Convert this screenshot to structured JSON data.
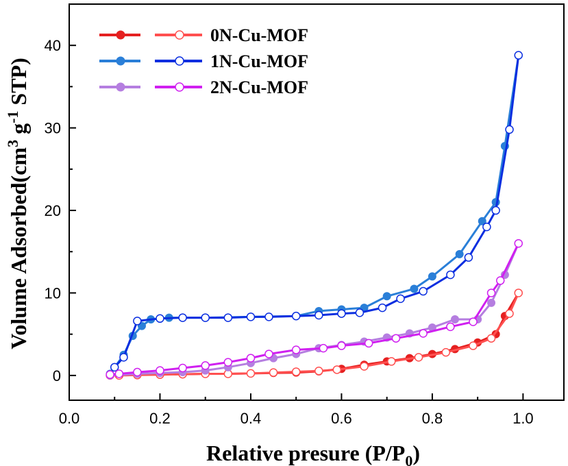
{
  "chart_data": {
    "type": "line",
    "xlabel": "Relative presure (P/P",
    "xlabel_sub": "0",
    "xlabel_end": ")",
    "ylabel": "Volume Adsorbed(cm",
    "ylabel_sup1": "3",
    "ylabel_mid": " g",
    "ylabel_sup2": "-1",
    "ylabel_end": " STP)",
    "xlim": [
      0.0,
      1.09
    ],
    "ylim": [
      -3.0,
      45.0
    ],
    "xticks": [
      0.0,
      0.2,
      0.4,
      0.6,
      0.8,
      1.0
    ],
    "xtick_labels": [
      "0.0",
      "0.2",
      "0.4",
      "0.6",
      "0.8",
      "1.0"
    ],
    "yticks": [
      0,
      10,
      20,
      30,
      40
    ],
    "ytick_labels": [
      "0",
      "10",
      "20",
      "30",
      "40"
    ],
    "legend_position": "top-left",
    "series": [
      {
        "name": "0N-Cu-MOF",
        "adsorption_color": "#e52020",
        "desorption_color": "#ff5050",
        "adsorption": {
          "x": [
            0.09,
            0.15,
            0.2,
            0.25,
            0.3,
            0.35,
            0.4,
            0.45,
            0.5,
            0.55,
            0.6,
            0.65,
            0.7,
            0.75,
            0.8,
            0.85,
            0.9,
            0.94,
            0.96,
            0.99
          ],
          "y": [
            0.0,
            0.1,
            0.15,
            0.15,
            0.2,
            0.2,
            0.25,
            0.3,
            0.35,
            0.5,
            0.8,
            1.3,
            1.7,
            2.1,
            2.6,
            3.2,
            4.0,
            5.0,
            7.2,
            10.0
          ]
        },
        "desorption": {
          "x": [
            0.99,
            0.97,
            0.93,
            0.89,
            0.83,
            0.77,
            0.71,
            0.65,
            0.59,
            0.55,
            0.5,
            0.45,
            0.4,
            0.35,
            0.3,
            0.25,
            0.2,
            0.15,
            0.11,
            0.09
          ],
          "y": [
            10.0,
            7.5,
            4.5,
            3.6,
            2.8,
            2.2,
            1.7,
            1.1,
            0.7,
            0.55,
            0.45,
            0.35,
            0.25,
            0.2,
            0.2,
            0.15,
            0.1,
            0.05,
            0.0,
            0.0
          ]
        }
      },
      {
        "name": "1N-Cu-MOF",
        "adsorption_color": "#2a7fd8",
        "desorption_color": "#0a2ee0",
        "adsorption": {
          "x": [
            0.09,
            0.12,
            0.14,
            0.16,
            0.18,
            0.22,
            0.3,
            0.4,
            0.5,
            0.55,
            0.6,
            0.65,
            0.7,
            0.76,
            0.8,
            0.86,
            0.91,
            0.94,
            0.96,
            0.99
          ],
          "y": [
            0.2,
            2.5,
            4.8,
            6.0,
            6.8,
            7.0,
            7.0,
            7.1,
            7.2,
            7.8,
            8.0,
            8.2,
            9.6,
            10.5,
            12.0,
            14.7,
            18.7,
            21.0,
            27.8,
            38.8
          ]
        },
        "desorption": {
          "x": [
            0.99,
            0.97,
            0.94,
            0.92,
            0.88,
            0.84,
            0.78,
            0.73,
            0.69,
            0.64,
            0.6,
            0.55,
            0.5,
            0.44,
            0.4,
            0.35,
            0.3,
            0.25,
            0.2,
            0.15,
            0.12,
            0.1
          ],
          "y": [
            38.8,
            29.8,
            20.0,
            18.0,
            14.3,
            12.2,
            10.2,
            9.3,
            8.2,
            7.6,
            7.5,
            7.3,
            7.2,
            7.1,
            7.1,
            7.0,
            7.0,
            7.0,
            6.9,
            6.6,
            2.2,
            1.0
          ]
        }
      },
      {
        "name": "2N-Cu-MOF",
        "adsorption_color": "#b57ee0",
        "desorption_color": "#d020f0",
        "adsorption": {
          "x": [
            0.09,
            0.15,
            0.2,
            0.25,
            0.3,
            0.35,
            0.4,
            0.45,
            0.5,
            0.55,
            0.6,
            0.65,
            0.7,
            0.75,
            0.8,
            0.85,
            0.9,
            0.93,
            0.96,
            0.99
          ],
          "y": [
            0.0,
            0.2,
            0.3,
            0.4,
            0.6,
            1.0,
            1.5,
            2.1,
            2.6,
            3.3,
            3.7,
            4.1,
            4.6,
            5.1,
            5.8,
            6.8,
            6.8,
            8.8,
            12.2,
            16.0
          ]
        },
        "desorption": {
          "x": [
            0.99,
            0.95,
            0.93,
            0.89,
            0.84,
            0.78,
            0.72,
            0.66,
            0.6,
            0.56,
            0.5,
            0.44,
            0.4,
            0.35,
            0.3,
            0.25,
            0.2,
            0.15,
            0.11,
            0.09
          ],
          "y": [
            16.0,
            11.5,
            10.0,
            6.5,
            5.9,
            5.1,
            4.5,
            3.9,
            3.6,
            3.3,
            3.1,
            2.6,
            2.1,
            1.6,
            1.2,
            0.9,
            0.6,
            0.4,
            0.2,
            0.1
          ]
        }
      }
    ]
  }
}
